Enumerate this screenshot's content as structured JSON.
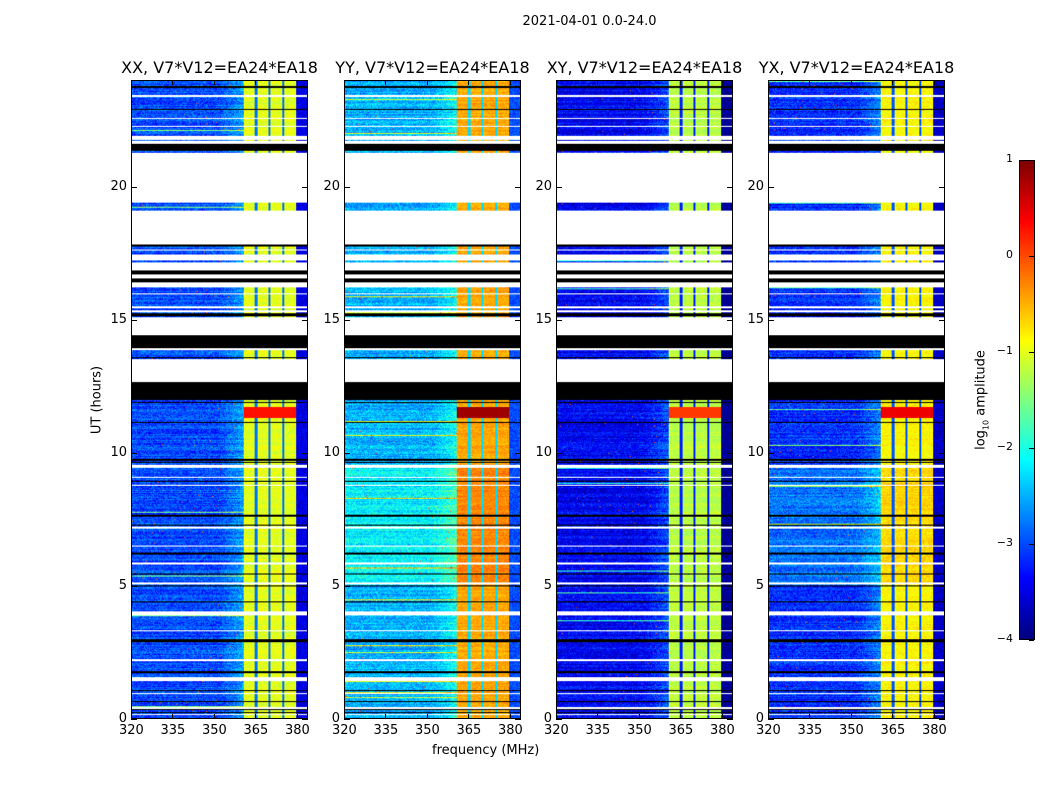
{
  "suptitle": "2021-04-01 0.0-24.0",
  "chart_data": {
    "type": "heatmap",
    "title": "2021-04-01 0.0-24.0",
    "xlabel": "frequency (MHz)",
    "ylabel": "UT (hours)",
    "xlim": [
      320,
      384
    ],
    "ylim": [
      0,
      24
    ],
    "xticks": [
      320,
      335,
      350,
      365,
      380
    ],
    "yticks": [
      0,
      5,
      10,
      15,
      20
    ],
    "colorbar": {
      "label_main": "log",
      "label_sub": "10",
      "label_rest": " amplitude",
      "colormap": "jet",
      "range": [
        -4,
        1
      ],
      "ticks": [
        1,
        0,
        -1,
        -2,
        -3,
        -4
      ],
      "tick_labels": [
        "1",
        "0",
        "−1",
        "−2",
        "−3",
        "−4"
      ]
    },
    "panels": [
      {
        "title": "XX, V7*V12=EA24*EA18",
        "background_level": -3.0,
        "band_level": -1.0
      },
      {
        "title": "YY, V7*V12=EA24*EA18",
        "background_level": -2.5,
        "band_level": -0.45
      },
      {
        "title": "XY, V7*V12=EA24*EA18",
        "background_level": -3.4,
        "band_level": -1.2
      },
      {
        "title": "YX, V7*V12=EA24*EA18",
        "background_level": -3.15,
        "band_level": -0.85
      }
    ],
    "bright_band_mhz": [
      361,
      380
    ],
    "band_notches_mhz": [
      365.3,
      370.3,
      375.3
    ],
    "strong_rfi_hours": [
      [
        11.3,
        11.7
      ]
    ],
    "flagged_white_hours": [
      [
        23.41,
        23.48
      ],
      [
        22.58,
        22.62
      ],
      [
        22.27,
        22.31
      ],
      [
        21.78,
        21.92
      ],
      [
        21.63,
        21.73
      ],
      [
        19.41,
        21.29
      ],
      [
        17.85,
        19.1
      ],
      [
        17.6,
        17.65
      ],
      [
        17.25,
        17.45
      ],
      [
        16.88,
        17.18
      ],
      [
        16.57,
        16.7
      ],
      [
        16.22,
        16.41
      ],
      [
        15.95,
        16.0
      ],
      [
        15.45,
        15.5
      ],
      [
        15.3,
        15.35
      ],
      [
        14.41,
        15.1
      ],
      [
        13.85,
        13.93
      ],
      [
        12.66,
        13.53
      ],
      [
        9.42,
        9.53
      ],
      [
        9.05,
        9.1
      ],
      [
        8.75,
        8.8
      ],
      [
        7.15,
        7.2
      ],
      [
        6.45,
        6.5
      ],
      [
        5.8,
        5.85
      ],
      [
        5.05,
        5.1
      ],
      [
        3.86,
        4.03
      ],
      [
        3.25,
        3.3
      ],
      [
        2.15,
        2.2
      ],
      [
        1.4,
        1.53
      ],
      [
        0.9,
        0.95
      ],
      [
        0.35,
        0.4
      ],
      [
        0.1,
        0.15
      ]
    ],
    "flagged_black_hours": [
      [
        23.75,
        23.8
      ],
      [
        22.9,
        22.96
      ],
      [
        21.38,
        21.63
      ],
      [
        17.76,
        17.85
      ],
      [
        16.7,
        16.88
      ],
      [
        16.41,
        16.57
      ],
      [
        15.15,
        15.2
      ],
      [
        15.22,
        15.26
      ],
      [
        14.1,
        14.41
      ],
      [
        13.93,
        14.1
      ],
      [
        13.55,
        13.6
      ],
      [
        11.98,
        12.66
      ],
      [
        11.85,
        11.9
      ],
      [
        11.1,
        11.15
      ],
      [
        9.7,
        9.78
      ],
      [
        9.6,
        9.65
      ],
      [
        8.9,
        8.95
      ],
      [
        7.6,
        7.65
      ],
      [
        7.25,
        7.3
      ],
      [
        6.15,
        6.22
      ],
      [
        5.4,
        5.45
      ],
      [
        4.95,
        5.0
      ],
      [
        4.35,
        4.4
      ],
      [
        2.85,
        2.96
      ],
      [
        1.7,
        1.75
      ],
      [
        1.0,
        1.05
      ],
      [
        0.6,
        0.65
      ],
      [
        0.3,
        0.33
      ],
      [
        0.2,
        0.23
      ]
    ]
  }
}
